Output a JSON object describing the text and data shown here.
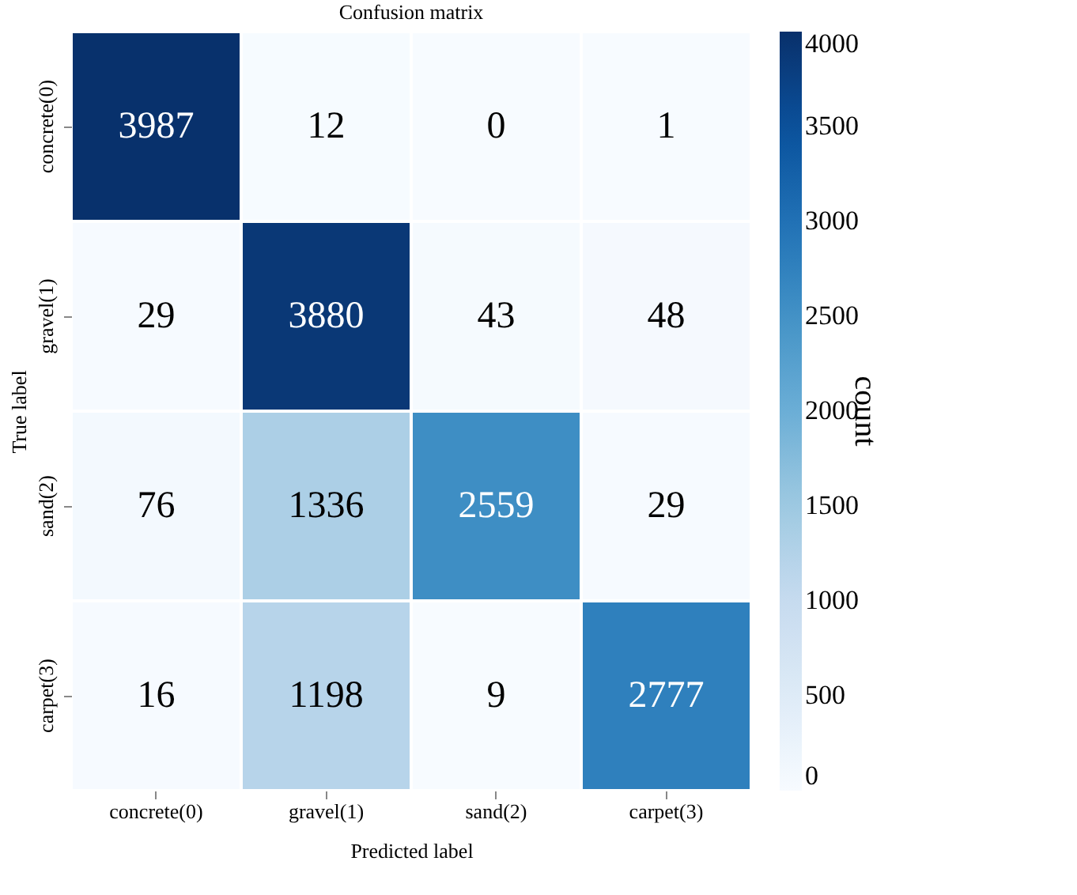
{
  "chart_data": {
    "type": "heatmap",
    "title": "Confusion matrix",
    "xlabel": "Predicted label",
    "ylabel": "True label",
    "clabel": "count",
    "categories": [
      "concrete(0)",
      "gravel(1)",
      "sand(2)",
      "carpet(3)"
    ],
    "y_categories": [
      "concrete(0)",
      "gravel(1)",
      "sand(2)",
      "carpet(3)"
    ],
    "cells": [
      [
        3987,
        12,
        0,
        1
      ],
      [
        29,
        3880,
        43,
        48
      ],
      [
        76,
        1336,
        2559,
        29
      ],
      [
        16,
        1198,
        9,
        2777
      ]
    ],
    "clim": [
      0,
      4000
    ],
    "cticks": [
      0,
      500,
      1000,
      1500,
      2000,
      2500,
      3000,
      3500,
      4000
    ],
    "data_labels": true
  }
}
